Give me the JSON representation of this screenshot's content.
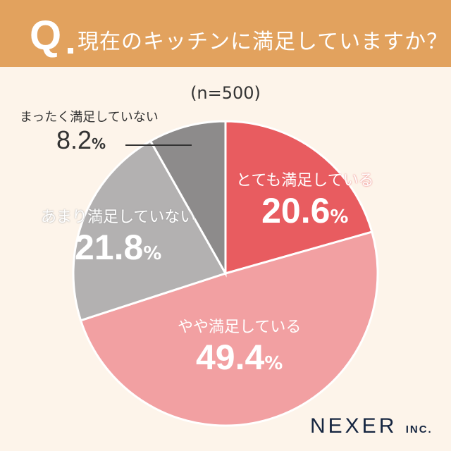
{
  "header": {
    "q": "Q",
    "title": "現在のキッチンに満足していますか？"
  },
  "chart_data": {
    "type": "pie",
    "sample": "(n=500)",
    "unit": "%",
    "start": "top, clockwise",
    "slices": [
      {
        "label": "とても満足している",
        "value": 20.6,
        "display": "20.6",
        "color": "#E85C60"
      },
      {
        "label": "やや満足している",
        "value": 49.4,
        "display": "49.4",
        "color": "#F2A0A2"
      },
      {
        "label": "あまり満足していない",
        "value": 21.8,
        "display": "21.8",
        "color": "#B3B1B1"
      },
      {
        "label": "まったく満足していない",
        "value": 8.2,
        "display": "8.2",
        "color": "#8D8B8B"
      }
    ]
  },
  "logo": {
    "name": "NEXER",
    "suffix": "INC."
  }
}
